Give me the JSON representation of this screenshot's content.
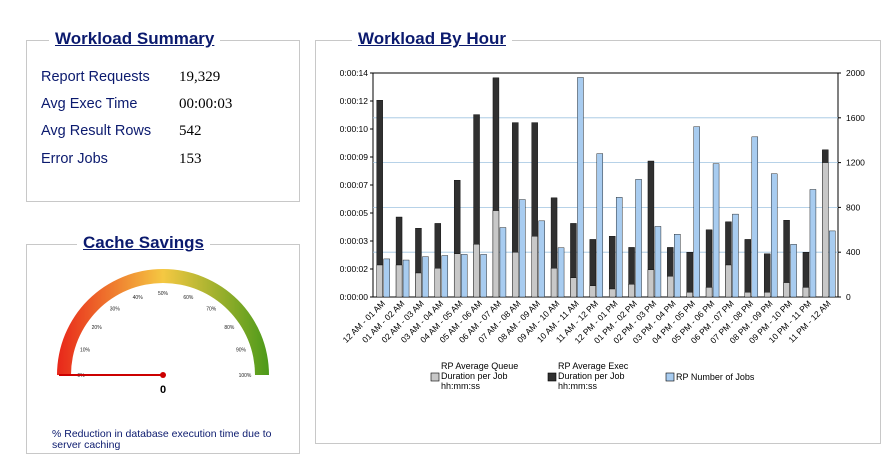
{
  "summary": {
    "title": "Workload Summary",
    "rows": [
      {
        "label": "Report Requests",
        "value": "19,329"
      },
      {
        "label": "Avg Exec Time",
        "value": "00:00:03"
      },
      {
        "label": "Avg Result Rows",
        "value": "542"
      },
      {
        "label": "Error Jobs",
        "value": "153"
      }
    ]
  },
  "cache": {
    "title": "Cache Savings",
    "gauge_value": 0,
    "gauge_value_label": "0",
    "gauge_ticks": [
      "0%",
      "10%",
      "20%",
      "30%",
      "40%",
      "50%",
      "60%",
      "70%",
      "80%",
      "90%",
      "100%"
    ],
    "note": "% Reduction in database execution time due to server caching",
    "colors": {
      "low": "#e8261a",
      "mid": "#f5c842",
      "high": "#4c9a1a",
      "needle": "#cc0000"
    }
  },
  "workload": {
    "title": "Workload By Hour",
    "chart_data": {
      "type": "bar",
      "categories": [
        "12 AM - 01 AM",
        "01 AM - 02 AM",
        "02 AM - 03 AM",
        "03 AM - 04 AM",
        "04 AM - 05 AM",
        "05 AM - 06 AM",
        "06 AM - 07 AM",
        "07 AM - 08 AM",
        "08 AM - 09 AM",
        "09 AM - 10 AM",
        "10 AM - 11 AM",
        "11 AM - 12 PM",
        "12 PM - 01 PM",
        "01 PM - 02 PM",
        "02 PM - 03 PM",
        "03 PM - 04 PM",
        "04 PM - 05 PM",
        "05 PM - 06 PM",
        "06 PM - 07 PM",
        "07 PM - 08 PM",
        "08 PM - 09 PM",
        "09 PM - 10 PM",
        "10 PM - 11 PM",
        "11 PM - 12 AM"
      ],
      "y_left_ticks": [
        "0:00:00",
        "0:00:02",
        "0:00:03",
        "0:00:05",
        "0:00:07",
        "0:00:09",
        "0:00:10",
        "0:00:12",
        "0:00:14"
      ],
      "y_left_range_seconds": [
        0,
        14
      ],
      "y_right_ticks": [
        "0",
        "400",
        "800",
        "1200",
        "1600",
        "2000"
      ],
      "y_right_range": [
        0,
        2000
      ],
      "series": [
        {
          "name": "RP Average Queue Duration per Job hh:mm:ss",
          "axis": "left",
          "color": "#c8c8c8",
          "values": [
            2.0,
            2.0,
            1.5,
            1.8,
            2.7,
            3.3,
            5.4,
            2.8,
            3.8,
            1.8,
            1.2,
            0.7,
            0.5,
            0.8,
            1.7,
            1.3,
            0.3,
            0.6,
            2.0,
            0.3,
            0.3,
            0.9,
            0.6,
            8.4
          ]
        },
        {
          "name": "RP Average Exec Duration per Job hh:mm:ss",
          "axis": "left",
          "color": "#303030",
          "values": [
            12.3,
            5.0,
            4.3,
            4.6,
            7.3,
            11.4,
            13.7,
            10.9,
            10.9,
            6.2,
            4.6,
            3.6,
            3.8,
            3.1,
            8.5,
            3.1,
            2.8,
            4.2,
            4.7,
            3.6,
            2.7,
            4.8,
            2.8,
            9.2
          ]
        },
        {
          "name": "RP Number of Jobs",
          "axis": "right",
          "color": "#a8ccf0",
          "values": [
            340,
            330,
            360,
            370,
            380,
            380,
            620,
            870,
            680,
            440,
            1960,
            1280,
            890,
            1050,
            630,
            560,
            1520,
            1190,
            740,
            1430,
            1100,
            470,
            960,
            590
          ]
        }
      ],
      "legend_placement": "bottom",
      "grid": true
    }
  }
}
